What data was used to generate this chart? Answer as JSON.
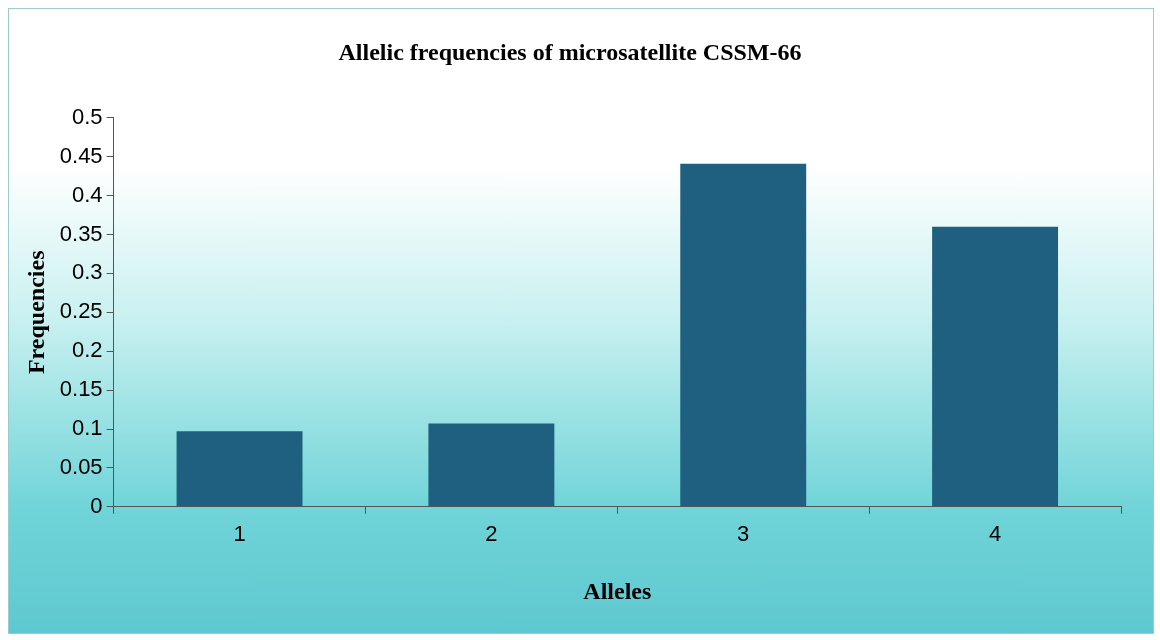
{
  "chart_data": {
    "type": "bar",
    "title": "Allelic frequencies of microsatellite CSSM-66",
    "xlabel": "Alleles",
    "ylabel": "Frequencies",
    "categories": [
      "1",
      "2",
      "3",
      "4"
    ],
    "values": [
      0.097,
      0.107,
      0.441,
      0.36
    ],
    "color": "#1f5f80",
    "ylim": [
      0,
      0.5
    ],
    "yticks": [
      0,
      0.05,
      0.1,
      0.15,
      0.2,
      0.25,
      0.3,
      0.35,
      0.4,
      0.45,
      0.5
    ],
    "grid": false,
    "legend": false
  }
}
